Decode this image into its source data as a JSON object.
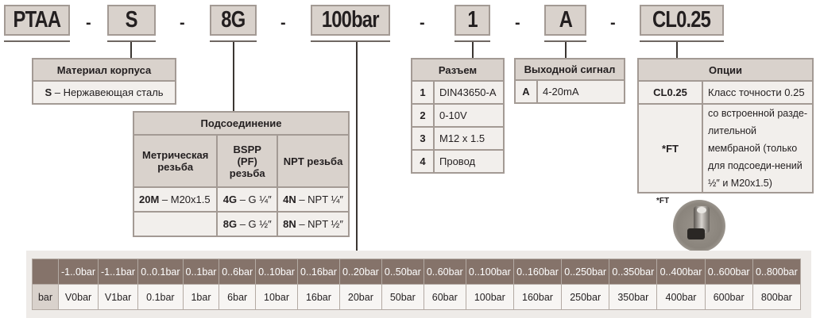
{
  "codes": [
    "PTAA",
    "S",
    "8G",
    "100bar",
    "1",
    "A",
    "CL0.25"
  ],
  "separator": "-",
  "material": {
    "title": "Материал корпуса",
    "code": "S",
    "desc": " – Нержавеющая сталь"
  },
  "connection": {
    "title": "Подсоединение",
    "headers": [
      "Метрическая резьба",
      "BSPP (PF) резьба",
      "NPT резьба"
    ],
    "rows": [
      [
        {
          "code": "20M",
          "desc": " – M20x1.5"
        },
        {
          "code": "4G",
          "desc": " – G ¼″"
        },
        {
          "code": "4N",
          "desc": " – NPT ¼″"
        }
      ],
      [
        {
          "code": "",
          "desc": ""
        },
        {
          "code": "8G",
          "desc": " – G ½″"
        },
        {
          "code": "8N",
          "desc": " – NPT ½″"
        }
      ]
    ]
  },
  "connector": {
    "title": "Разъем",
    "rows": [
      [
        "1",
        "DIN43650-A"
      ],
      [
        "2",
        "0-10V"
      ],
      [
        "3",
        "M12 x 1.5"
      ],
      [
        "4",
        "Провод"
      ]
    ]
  },
  "output": {
    "title": "Выходной сигнал",
    "rows": [
      [
        "A",
        "4-20mA"
      ]
    ]
  },
  "options": {
    "title": "Опции",
    "rows": [
      [
        "CL0.25",
        "Класс точности 0.25"
      ],
      [
        "*FT",
        "со встроенной разде-лительной мембраной (только для подсоеди-нений ½″ и M20x1.5)"
      ]
    ],
    "image_label": "*FT"
  },
  "pressure": {
    "row_label": "bar",
    "ranges": [
      "-1..0bar",
      "-1..1bar",
      "0..0.1bar",
      "0..1bar",
      "0..6bar",
      "0..10bar",
      "0..16bar",
      "0..20bar",
      "0..50bar",
      "0..60bar",
      "0..100bar",
      "0..160bar",
      "0..250bar",
      "0..350bar",
      "0..400bar",
      "0..600bar",
      "0..800bar"
    ],
    "codes": [
      "V0bar",
      "V1bar",
      "0.1bar",
      "1bar",
      "6bar",
      "10bar",
      "16bar",
      "20bar",
      "50bar",
      "60bar",
      "100bar",
      "160bar",
      "250bar",
      "350bar",
      "400bar",
      "600bar",
      "800bar"
    ]
  },
  "colors": {
    "header_fill": "#d9d2cc",
    "cell_fill": "#f2efec",
    "table_header": "#85736a",
    "border": "#a39a94"
  }
}
